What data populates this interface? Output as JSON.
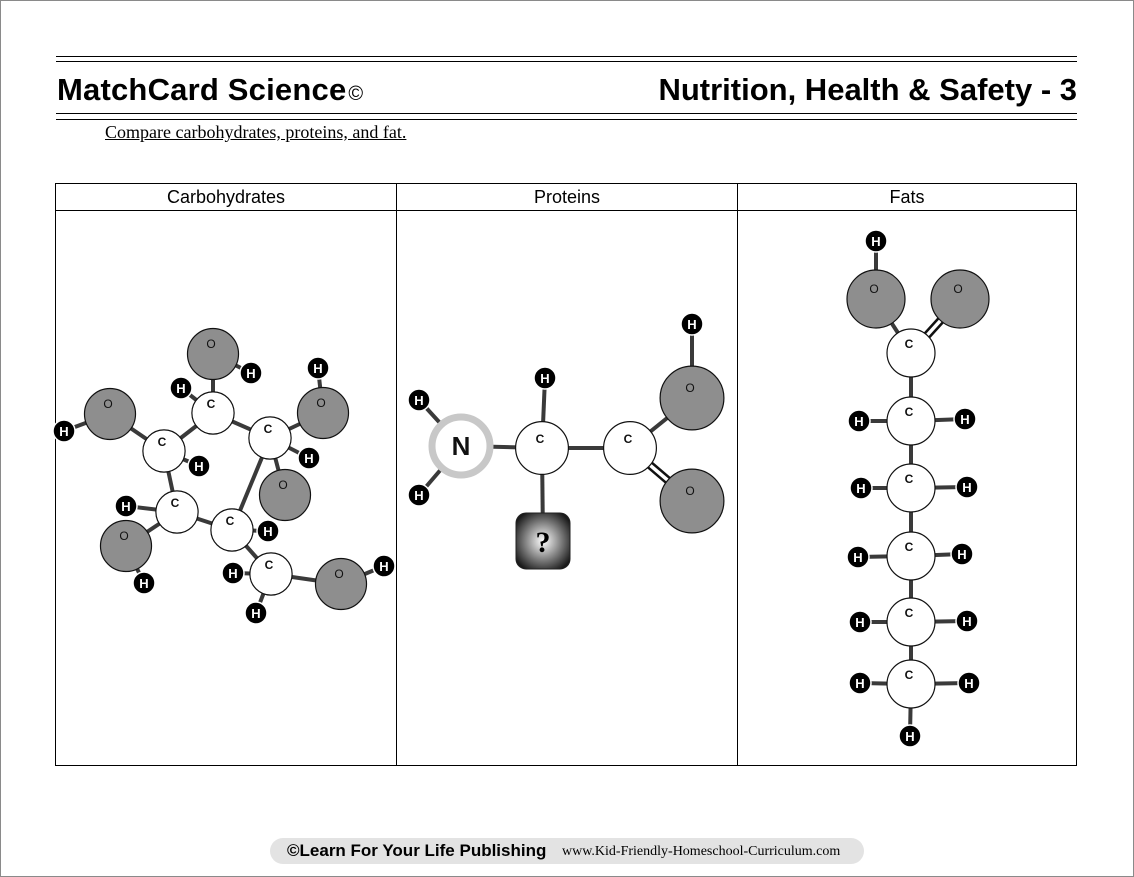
{
  "header": {
    "brand": "MatchCard Science",
    "brand_mark": "©",
    "unit_title": "Nutrition, Health & Safety - 3"
  },
  "instructions": "Compare carbohydrates, proteins, and fat.",
  "columns": [
    {
      "heading": "Carbohydrates"
    },
    {
      "heading": "Proteins"
    },
    {
      "heading": "Fats"
    }
  ],
  "atom_labels": {
    "hydrogen": "H",
    "carbon": "C",
    "oxygen": "O",
    "nitrogen": "N",
    "unknown": "?"
  },
  "colors": {
    "oxygen": "#8e8e8e",
    "hydrogen": "#000000",
    "carbon": "#ffffff",
    "nitrogen_ring": "#c8c8c8",
    "bond": "#3a3a3a"
  },
  "footer": {
    "publisher": "©Learn For Your Life Publishing",
    "url": "www.Kid-Friendly-Homeschool-Curriculum.com"
  }
}
